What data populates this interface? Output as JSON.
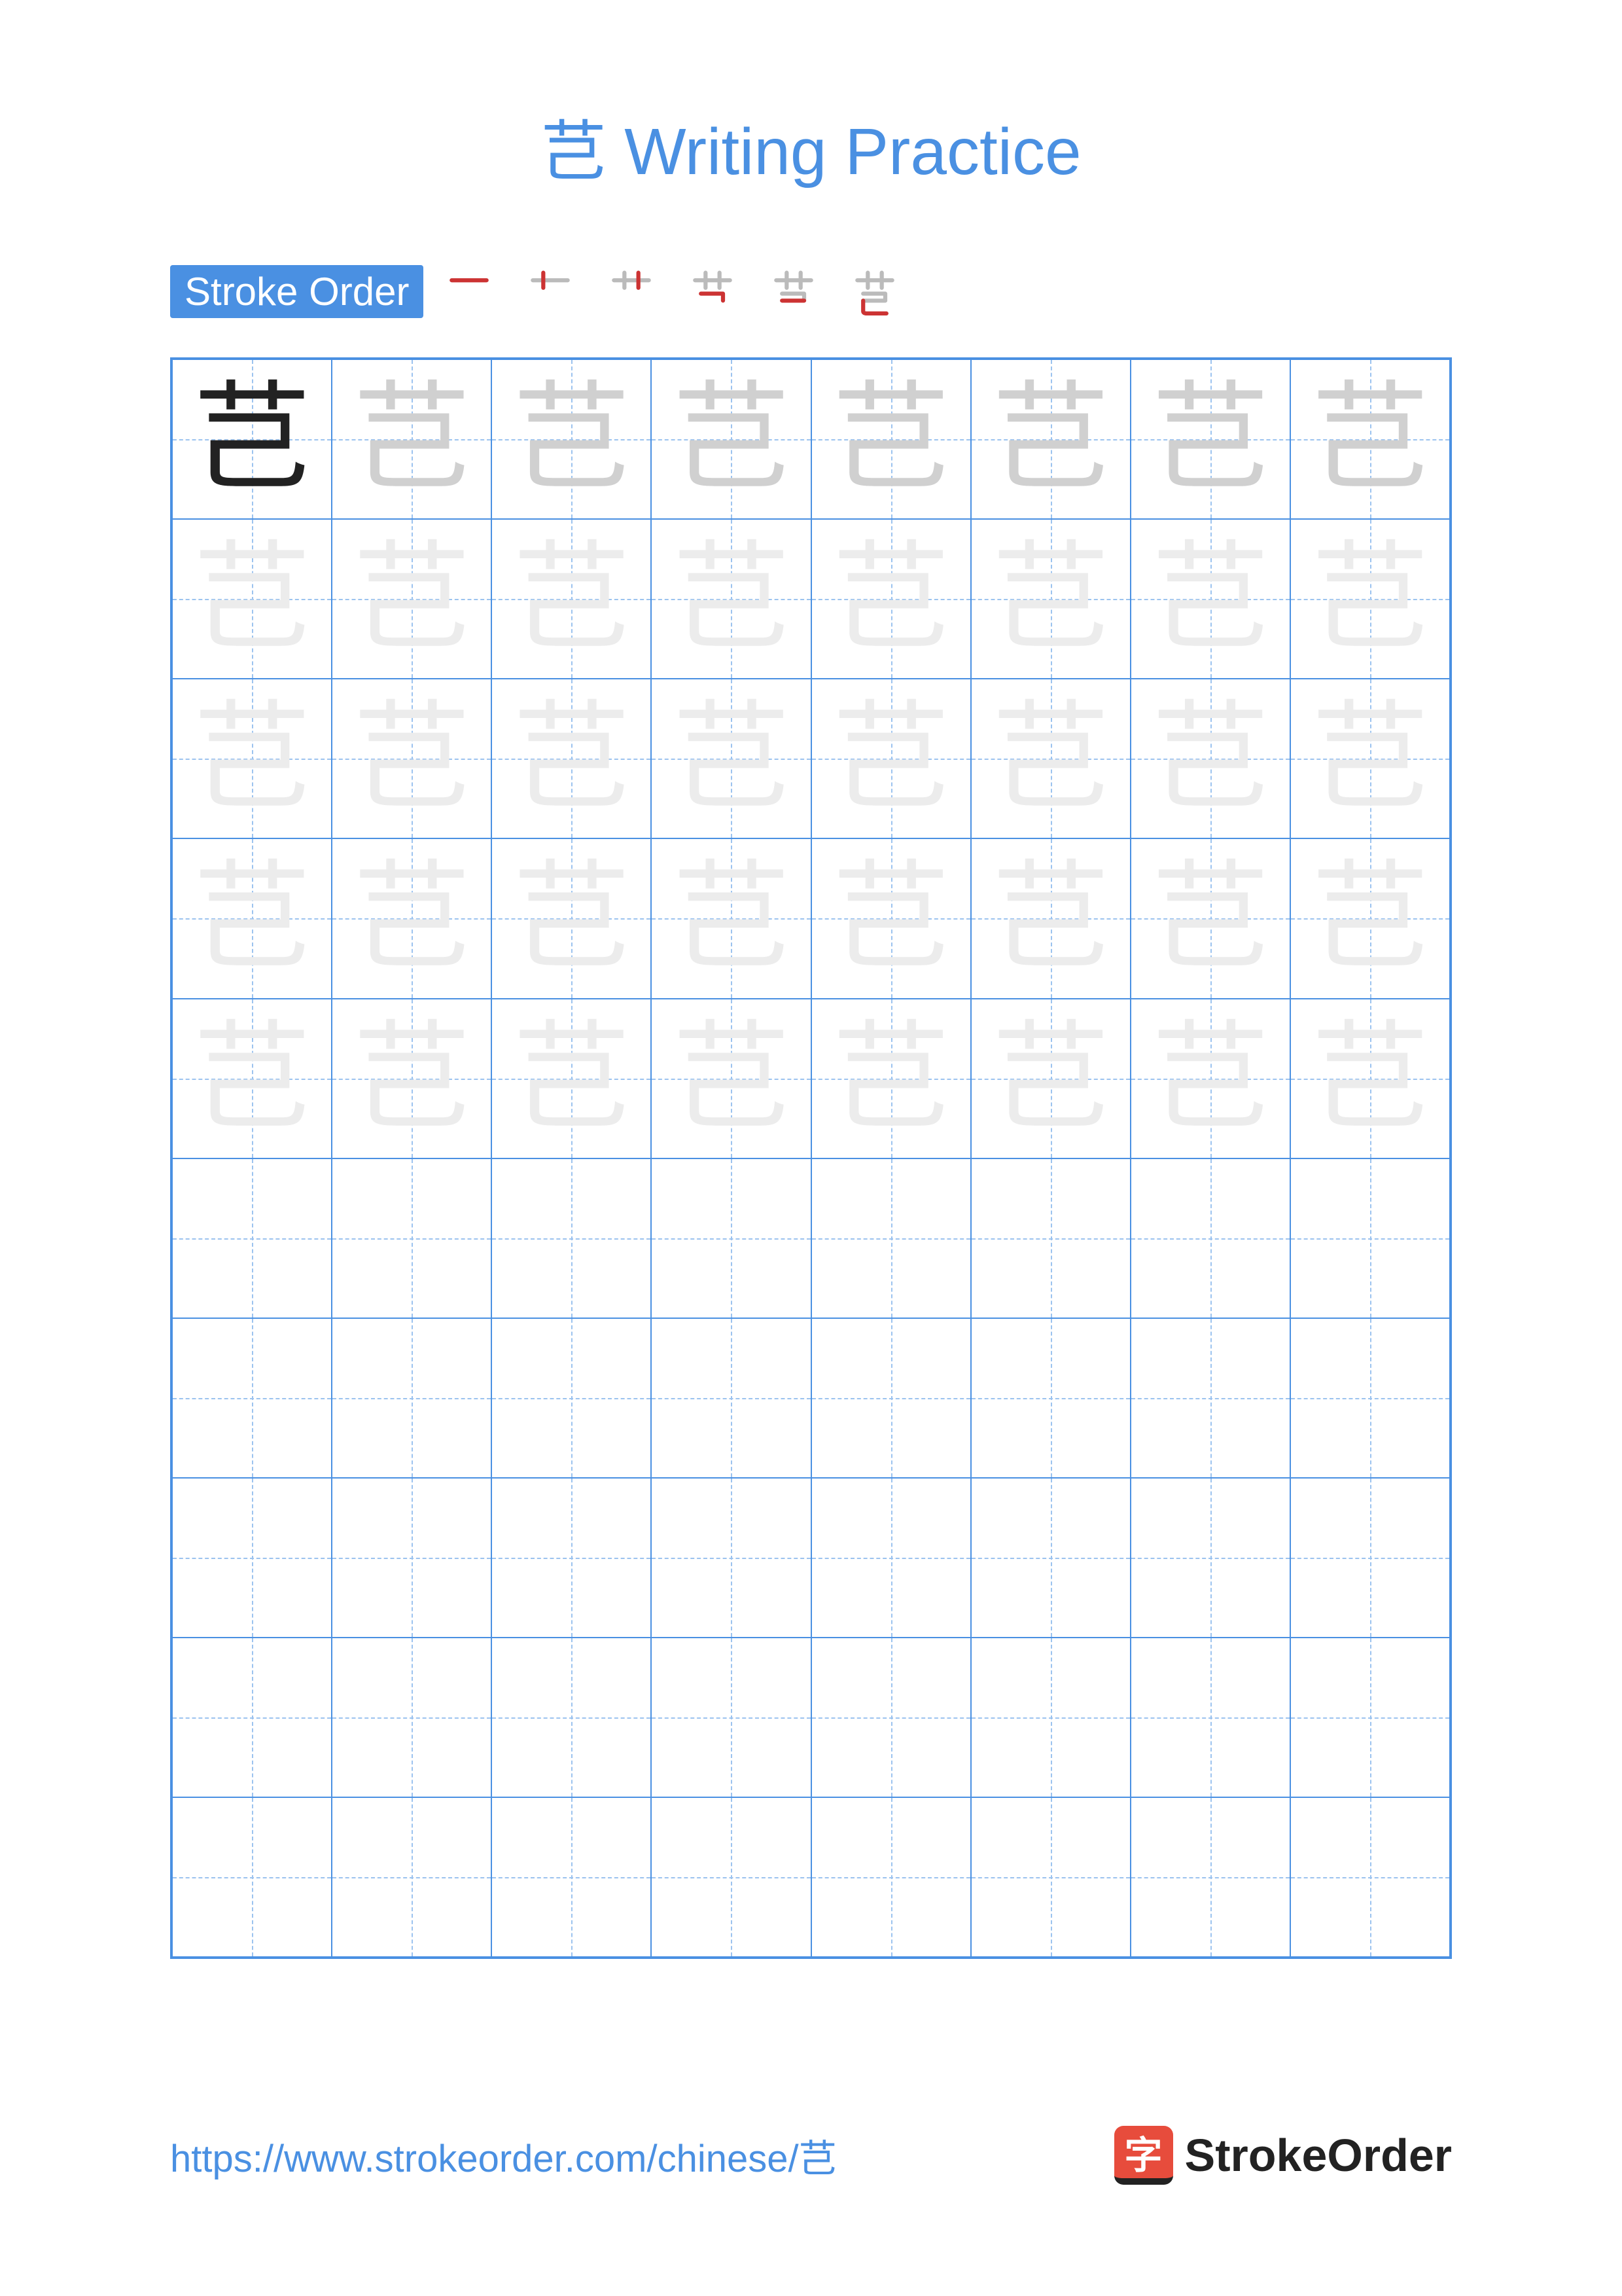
{
  "title": {
    "character": "芑",
    "text_suffix": " Writing Practice",
    "color": "#4a90e2",
    "fontsize": 100
  },
  "stroke_order": {
    "label": "Stroke Order",
    "label_bg": "#4a90e2",
    "label_color": "#ffffff",
    "steps": 6,
    "gray_stroke": "#bbbbbb",
    "red_stroke": "#cc3333"
  },
  "grid": {
    "rows": 10,
    "cols": 8,
    "border_color": "#4a90e2",
    "guide_color": "#9cc3ef",
    "model_char": "芑",
    "dark_color": "#222222",
    "gray_color": "#d0d0d0",
    "faint_color": "#ececec",
    "trace_rows": 5,
    "empty_rows": 5
  },
  "footer": {
    "url": "https://www.strokeorder.com/chinese/芑",
    "url_color": "#4a90e2",
    "logo_icon_char": "字",
    "logo_icon_bg": "#e74c3c",
    "logo_text": "StrokeOrder"
  }
}
